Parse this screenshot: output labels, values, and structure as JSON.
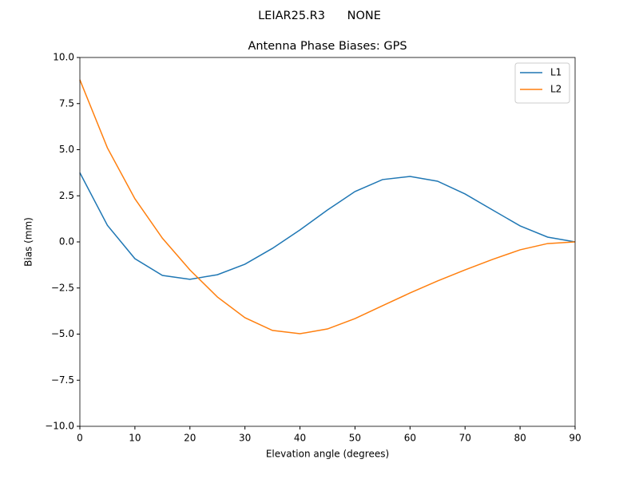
{
  "chart_data": {
    "type": "line",
    "title": "LEIAR25.R3      NONE",
    "subtitle": "Antenna Phase Biases: GPS",
    "x_label": "Elevation angle (degrees)",
    "y_label": "Bias (mm)",
    "x": [
      0,
      5,
      10,
      15,
      20,
      25,
      30,
      35,
      40,
      45,
      50,
      55,
      60,
      65,
      70,
      75,
      80,
      85,
      90
    ],
    "series": [
      {
        "name": "L1",
        "color": "#1f77b4",
        "values": [
          3.75,
          0.9,
          -0.91,
          -1.82,
          -2.03,
          -1.78,
          -1.21,
          -0.35,
          0.65,
          1.73,
          2.73,
          3.38,
          3.55,
          3.29,
          2.6,
          1.73,
          0.87,
          0.26,
          0
        ]
      },
      {
        "name": "L2",
        "color": "#ff7f0e",
        "values": [
          8.79,
          5.1,
          2.34,
          0.2,
          -1.52,
          -2.99,
          -4.11,
          -4.8,
          -4.98,
          -4.72,
          -4.16,
          -3.46,
          -2.77,
          -2.12,
          -1.52,
          -0.95,
          -0.43,
          -0.09,
          0
        ]
      }
    ],
    "xlim": [
      0,
      90
    ],
    "ylim": [
      -10,
      10
    ],
    "xticks": [
      0,
      10,
      20,
      30,
      40,
      50,
      60,
      70,
      80,
      90
    ],
    "yticks": [
      {
        "value": -10,
        "label": "−10.0"
      },
      {
        "value": -7.5,
        "label": "−7.5"
      },
      {
        "value": -5,
        "label": "−5.0"
      },
      {
        "value": -2.5,
        "label": "−2.5"
      },
      {
        "value": 0,
        "label": "0.0"
      },
      {
        "value": 2.5,
        "label": "2.5"
      },
      {
        "value": 5,
        "label": "5.0"
      },
      {
        "value": 7.5,
        "label": "7.5"
      },
      {
        "value": 10,
        "label": "10.0"
      }
    ],
    "legend": "upper right",
    "grid": false
  }
}
